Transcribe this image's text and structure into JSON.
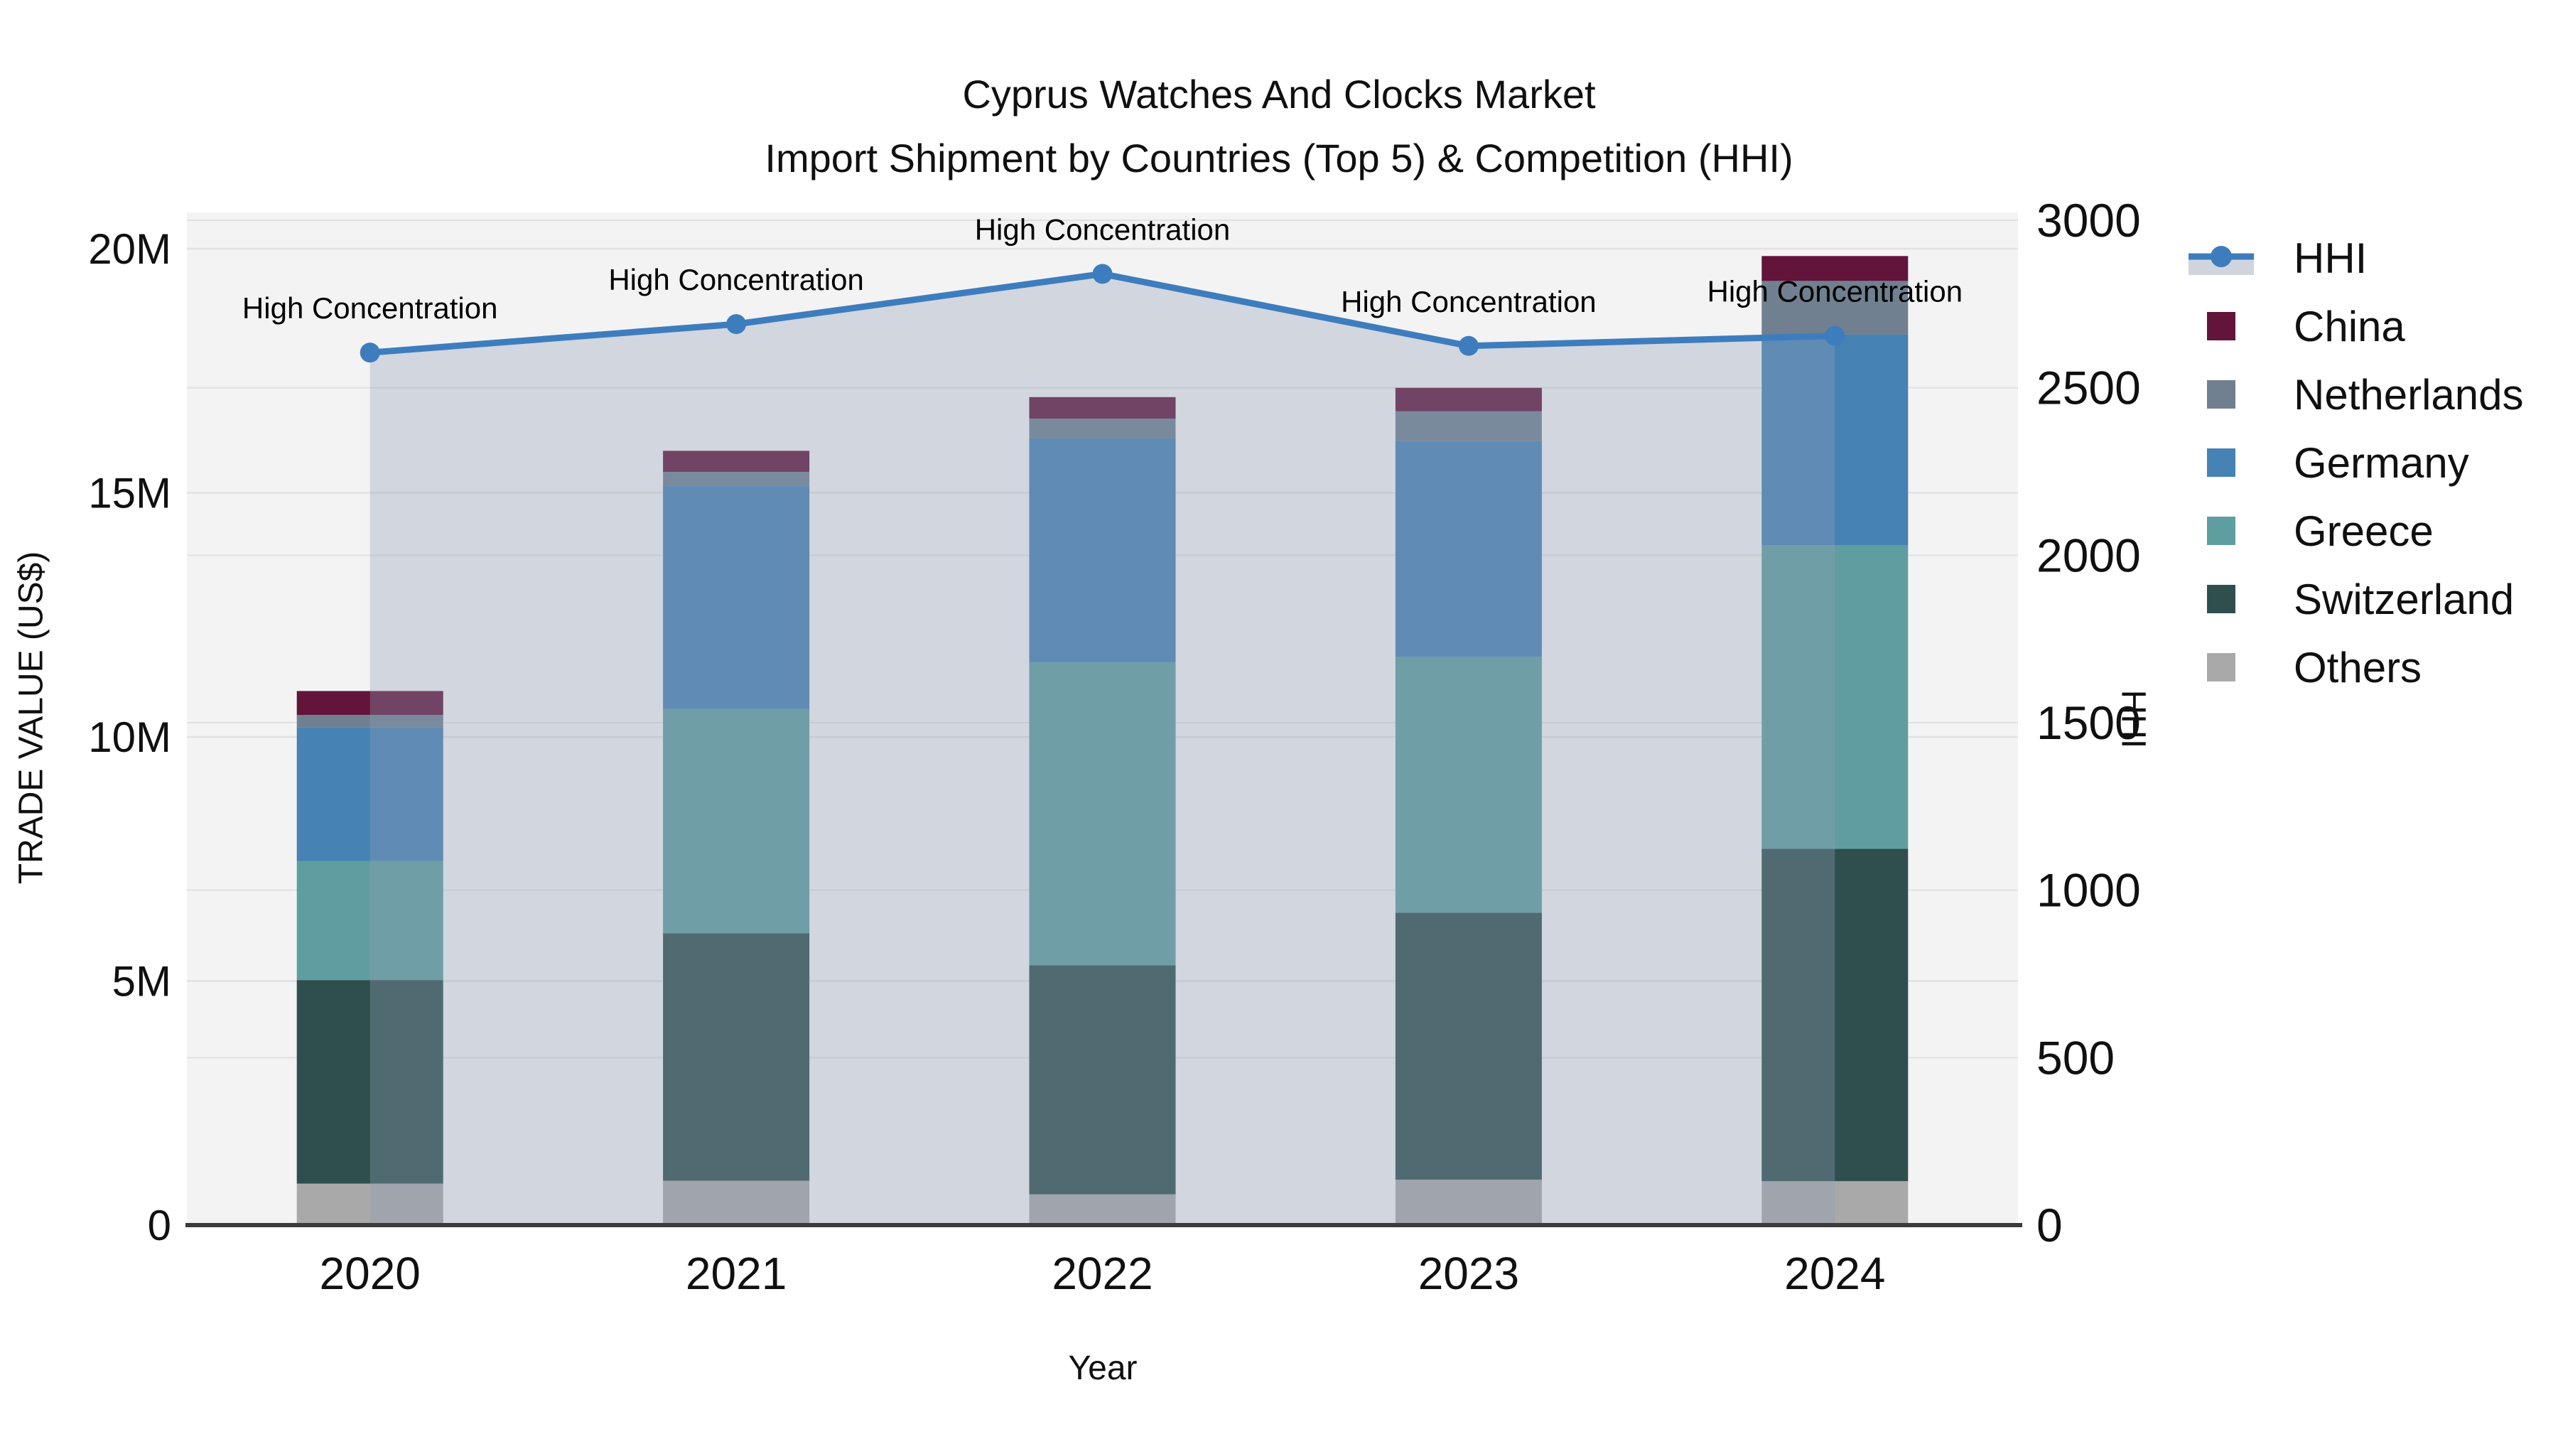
{
  "title": {
    "line1": "Cyprus Watches And Clocks Market",
    "line2": "Import Shipment by Countries (Top 5) & Competition (HHI)"
  },
  "axes": {
    "x": {
      "title": "Year",
      "categories": [
        "2020",
        "2021",
        "2022",
        "2023",
        "2024"
      ]
    },
    "y_left": {
      "title": "TRADE VALUE (US$)",
      "tick_labels": [
        "0",
        "5M",
        "10M",
        "15M",
        "20M"
      ],
      "tick_values": [
        0,
        5000000,
        10000000,
        15000000,
        20000000
      ]
    },
    "y_right": {
      "title": "HHI",
      "tick_labels": [
        "0",
        "500",
        "1000",
        "1500",
        "2000",
        "2500",
        "3000"
      ],
      "tick_values": [
        0,
        500,
        1000,
        1500,
        2000,
        2500,
        3000
      ]
    }
  },
  "legend": {
    "items": [
      {
        "label": "HHI",
        "type": "line"
      },
      {
        "label": "China",
        "type": "swatch"
      },
      {
        "label": "Netherlands",
        "type": "swatch"
      },
      {
        "label": "Germany",
        "type": "swatch"
      },
      {
        "label": "Greece",
        "type": "swatch"
      },
      {
        "label": "Switzerland",
        "type": "swatch"
      },
      {
        "label": "Others",
        "type": "swatch"
      }
    ]
  },
  "chart_data": {
    "type": [
      "bar-stacked",
      "line"
    ],
    "title": "Cyprus Watches And Clocks Market — Import Shipment by Countries (Top 5) & Competition (HHI)",
    "xlabel": "Year",
    "ylabel": "TRADE VALUE (US$)",
    "ylabel_right": "HHI",
    "ylim": [
      0,
      20000000
    ],
    "y2lim": [
      0,
      3000
    ],
    "grid": true,
    "legend_position": "right",
    "categories": [
      "2020",
      "2021",
      "2022",
      "2023",
      "2024"
    ],
    "stack_order": [
      "Others",
      "Switzerland",
      "Greece",
      "Germany",
      "Netherlands",
      "China"
    ],
    "series": [
      {
        "name": "China",
        "color": "#62143A",
        "values": [
          490000,
          430000,
          440000,
          480000,
          510000
        ]
      },
      {
        "name": "Netherlands",
        "color": "#708090",
        "values": [
          250000,
          290000,
          400000,
          610000,
          1100000
        ]
      },
      {
        "name": "Germany",
        "color": "#4682B4",
        "values": [
          2740000,
          4570000,
          4590000,
          4420000,
          4310000
        ]
      },
      {
        "name": "Greece",
        "color": "#5F9EA0",
        "values": [
          2440000,
          4590000,
          6210000,
          5240000,
          6220000
        ]
      },
      {
        "name": "Switzerland",
        "color": "#2F4F4F",
        "values": [
          4170000,
          5070000,
          4690000,
          5470000,
          6810000
        ]
      },
      {
        "name": "Others",
        "color": "#A9A9A9",
        "values": [
          850000,
          910000,
          630000,
          930000,
          900000
        ]
      }
    ],
    "hhi": {
      "name": "HHI",
      "axis": "right",
      "values": [
        2605,
        2690,
        2840,
        2625,
        2655
      ],
      "line_color": "#3E7DBD",
      "fill_color": "rgba(144,158,183,0.34)",
      "legend_fill": "#D0D5DD"
    },
    "annotations": [
      {
        "text": "High Concentration",
        "x_index": 0
      },
      {
        "text": "High Concentration",
        "x_index": 1
      },
      {
        "text": "High Concentration",
        "x_index": 2
      },
      {
        "text": "High Concentration",
        "x_index": 3
      },
      {
        "text": "High Concentration",
        "x_index": 4
      }
    ]
  },
  "colors": {
    "plot_bg": "#F3F3F4",
    "grid": "#E1E1E4",
    "axis_line": "#3B3B3B",
    "text": "#101010"
  }
}
